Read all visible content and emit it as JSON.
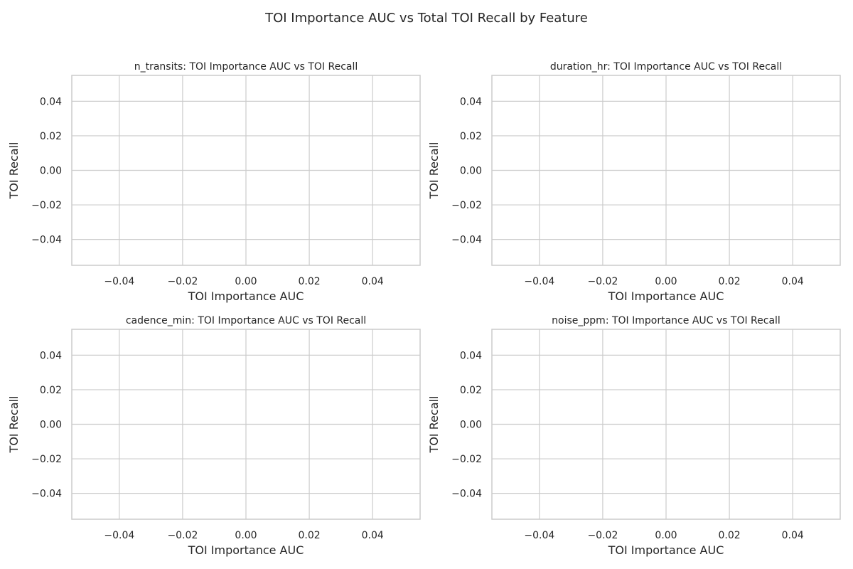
{
  "figure": {
    "title": "TOI Importance AUC vs Total TOI Recall by Feature"
  },
  "chart_data": [
    {
      "type": "scatter",
      "title": "n_transits: TOI Importance AUC vs TOI Recall",
      "xlabel": "TOI Importance AUC",
      "ylabel": "TOI Recall",
      "xlim": [
        -0.055,
        0.055
      ],
      "ylim": [
        -0.055,
        0.055
      ],
      "xticks": [
        -0.04,
        -0.02,
        0.0,
        0.02,
        0.04
      ],
      "yticks": [
        -0.04,
        -0.02,
        0.0,
        0.02,
        0.04
      ],
      "xtick_labels": [
        "−0.04",
        "−0.02",
        "0.00",
        "0.02",
        "0.04"
      ],
      "ytick_labels": [
        "−0.04",
        "−0.02",
        "0.00",
        "0.02",
        "0.04"
      ],
      "grid": true,
      "series": []
    },
    {
      "type": "scatter",
      "title": "duration_hr: TOI Importance AUC vs TOI Recall",
      "xlabel": "TOI Importance AUC",
      "ylabel": "TOI Recall",
      "xlim": [
        -0.055,
        0.055
      ],
      "ylim": [
        -0.055,
        0.055
      ],
      "xticks": [
        -0.04,
        -0.02,
        0.0,
        0.02,
        0.04
      ],
      "yticks": [
        -0.04,
        -0.02,
        0.0,
        0.02,
        0.04
      ],
      "xtick_labels": [
        "−0.04",
        "−0.02",
        "0.00",
        "0.02",
        "0.04"
      ],
      "ytick_labels": [
        "−0.04",
        "−0.02",
        "0.00",
        "0.02",
        "0.04"
      ],
      "grid": true,
      "series": []
    },
    {
      "type": "scatter",
      "title": "cadence_min: TOI Importance AUC vs TOI Recall",
      "xlabel": "TOI Importance AUC",
      "ylabel": "TOI Recall",
      "xlim": [
        -0.055,
        0.055
      ],
      "ylim": [
        -0.055,
        0.055
      ],
      "xticks": [
        -0.04,
        -0.02,
        0.0,
        0.02,
        0.04
      ],
      "yticks": [
        -0.04,
        -0.02,
        0.0,
        0.02,
        0.04
      ],
      "xtick_labels": [
        "−0.04",
        "−0.02",
        "0.00",
        "0.02",
        "0.04"
      ],
      "ytick_labels": [
        "−0.04",
        "−0.02",
        "0.00",
        "0.02",
        "0.04"
      ],
      "grid": true,
      "series": []
    },
    {
      "type": "scatter",
      "title": "noise_ppm: TOI Importance AUC vs TOI Recall",
      "xlabel": "TOI Importance AUC",
      "ylabel": "TOI Recall",
      "xlim": [
        -0.055,
        0.055
      ],
      "ylim": [
        -0.055,
        0.055
      ],
      "xticks": [
        -0.04,
        -0.02,
        0.0,
        0.02,
        0.04
      ],
      "yticks": [
        -0.04,
        -0.02,
        0.0,
        0.02,
        0.04
      ],
      "xtick_labels": [
        "−0.04",
        "−0.02",
        "0.00",
        "0.02",
        "0.04"
      ],
      "ytick_labels": [
        "−0.04",
        "−0.02",
        "0.00",
        "0.02",
        "0.04"
      ],
      "grid": true,
      "series": []
    }
  ]
}
